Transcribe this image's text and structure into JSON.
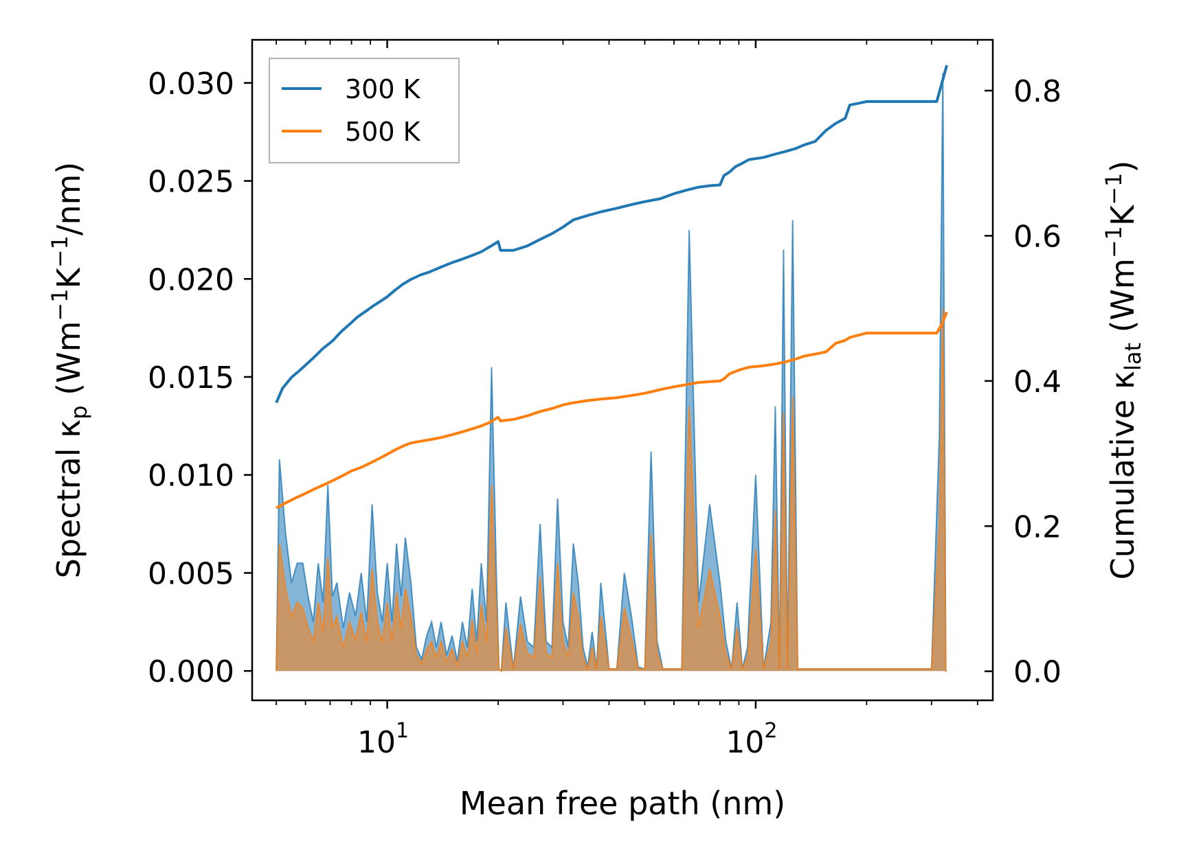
{
  "chart_data": {
    "type": "line",
    "title": "",
    "xlabel": "Mean free path (nm)",
    "ylabel_left": {
      "main": "Spectral κ",
      "sub": "p",
      "unit_open": " (Wm",
      "sup1": "−1",
      "k": "K",
      "sup2": "−1",
      "unit_close": "/nm)"
    },
    "ylabel_right": {
      "main": "Cumulative κ",
      "sub": "lat",
      "unit_open": " (Wm",
      "sup1": "−1",
      "k": "K",
      "sup2": "−1",
      "unit_close": ")"
    },
    "xscale": "log",
    "xlim": [
      4.3,
      440
    ],
    "ylim_left": [
      -0.0015,
      0.0322
    ],
    "ylim_right": [
      -0.04,
      0.87
    ],
    "x_ticks": [
      {
        "value": 10,
        "base": "10",
        "exp": "1"
      },
      {
        "value": 100,
        "base": "10",
        "exp": "2"
      }
    ],
    "y_ticks_left": [
      "0.000",
      "0.005",
      "0.010",
      "0.015",
      "0.020",
      "0.025",
      "0.030"
    ],
    "y_ticks_right": [
      "0.0",
      "0.2",
      "0.4",
      "0.6",
      "0.8"
    ],
    "legend": {
      "position": "top-left",
      "entries": [
        "300 K",
        "500 K"
      ]
    },
    "colors": {
      "300 K": "#1f77b4",
      "500 K": "#ff7f0e"
    },
    "series": [
      {
        "name": "300 K",
        "cumulative": {
          "x": [
            5.0,
            5.2,
            5.5,
            5.8,
            6.1,
            6.4,
            6.7,
            7.1,
            7.5,
            7.9,
            8.3,
            8.8,
            9.2,
            9.6,
            10.0,
            10.5,
            11.0,
            11.6,
            12.3,
            13.0,
            14.0,
            15.0,
            16.0,
            17.0,
            18.0,
            19.0,
            20.0,
            20.3,
            22,
            24,
            26,
            28,
            30,
            32,
            35,
            38,
            42,
            46,
            50,
            55,
            60,
            65,
            70,
            75,
            80,
            82,
            85,
            88,
            92,
            96,
            105,
            112,
            120,
            128,
            135,
            145,
            155,
            165,
            175,
            180,
            200,
            250,
            310,
            320,
            330
          ],
          "y": [
            0.37,
            0.39,
            0.405,
            0.415,
            0.425,
            0.435,
            0.445,
            0.455,
            0.468,
            0.478,
            0.488,
            0.497,
            0.504,
            0.51,
            0.516,
            0.525,
            0.533,
            0.54,
            0.546,
            0.55,
            0.557,
            0.563,
            0.568,
            0.573,
            0.578,
            0.585,
            0.592,
            0.58,
            0.58,
            0.586,
            0.595,
            0.603,
            0.612,
            0.622,
            0.628,
            0.633,
            0.638,
            0.643,
            0.647,
            0.651,
            0.658,
            0.663,
            0.667,
            0.669,
            0.67,
            0.683,
            0.688,
            0.695,
            0.7,
            0.705,
            0.708,
            0.712,
            0.716,
            0.72,
            0.725,
            0.73,
            0.745,
            0.755,
            0.762,
            0.78,
            0.785,
            0.785,
            0.785,
            0.81,
            0.835
          ]
        },
        "spectral": {
          "x": [
            5.0,
            5.1,
            5.3,
            5.5,
            5.7,
            5.9,
            6.1,
            6.3,
            6.5,
            6.7,
            6.9,
            7.1,
            7.3,
            7.6,
            7.9,
            8.2,
            8.5,
            8.8,
            9.1,
            9.4,
            9.7,
            10.0,
            10.3,
            10.6,
            10.9,
            11.2,
            11.6,
            12.0,
            12.4,
            12.8,
            13.2,
            13.6,
            14.0,
            14.5,
            15.0,
            15.5,
            16.0,
            16.5,
            17.0,
            17.5,
            18.0,
            18.6,
            19.2,
            19.8,
            20.1,
            20.4,
            21,
            22,
            23,
            24,
            25,
            26,
            27,
            28,
            29,
            30,
            31,
            32,
            33,
            34,
            35,
            36,
            37,
            38,
            40,
            42,
            44,
            46,
            48,
            50,
            52,
            54,
            56,
            58,
            60,
            63,
            66,
            70,
            75,
            80,
            83,
            86,
            89,
            92,
            95,
            100,
            105,
            110,
            113,
            116,
            119,
            122,
            126,
            130,
            134,
            138,
            142,
            146,
            150,
            154,
            158,
            162,
            166,
            170,
            174,
            178,
            182,
            200,
            250,
            300,
            315,
            322,
            328,
            330
          ],
          "y": [
            0.0,
            0.0108,
            0.007,
            0.0045,
            0.0055,
            0.0055,
            0.0038,
            0.0025,
            0.0055,
            0.0035,
            0.0095,
            0.0038,
            0.0045,
            0.0022,
            0.004,
            0.0028,
            0.005,
            0.0025,
            0.0085,
            0.004,
            0.0025,
            0.0055,
            0.0025,
            0.0065,
            0.0038,
            0.0068,
            0.0045,
            0.0012,
            0.0006,
            0.0018,
            0.0025,
            0.0012,
            0.0025,
            0.0008,
            0.0018,
            0.0005,
            0.0025,
            0.0012,
            0.0042,
            0.0015,
            0.0055,
            0.0025,
            0.0155,
            0.0045,
            0.0001,
            0.0,
            0.0035,
            0.0001,
            0.0038,
            0.0015,
            0.0012,
            0.0075,
            0.0015,
            0.0012,
            0.0088,
            0.0025,
            0.0012,
            0.0065,
            0.0045,
            0.0012,
            0.0002,
            0.002,
            0.0001,
            0.0045,
            0.0001,
            0.0001,
            0.005,
            0.0028,
            0.0002,
            0.0001,
            0.0112,
            0.0015,
            0.0001,
            0.0001,
            0.0001,
            0.0001,
            0.0225,
            0.0035,
            0.0085,
            0.0045,
            0.0015,
            0.0001,
            0.0035,
            0.0001,
            0.0012,
            0.01,
            0.0001,
            0.0025,
            0.0135,
            0.0001,
            0.0215,
            0.0001,
            0.023,
            0.0001,
            0.0001,
            0.0001,
            0.0001,
            0.0001,
            0.0001,
            0.0001,
            0.0001,
            0.0001,
            0.0001,
            0.0001,
            0.0001,
            0.0001,
            0.0001,
            0.0001,
            0.0001,
            0.0001,
            0.012,
            0.0305,
            0.0,
            0.0
          ]
        }
      },
      {
        "name": "500 K",
        "cumulative": {
          "x": [
            5.0,
            5.3,
            5.6,
            6.0,
            6.4,
            6.8,
            7.2,
            7.6,
            8.0,
            8.5,
            9.0,
            9.5,
            10.0,
            10.5,
            11.0,
            11.5,
            12.0,
            13.0,
            14.0,
            15.0,
            16.0,
            17.0,
            18.0,
            19.0,
            20.0,
            20.3,
            22,
            24,
            26,
            28,
            30,
            32,
            35,
            38,
            42,
            46,
            50,
            55,
            60,
            65,
            70,
            75,
            80,
            82,
            85,
            90,
            96,
            105,
            112,
            120,
            128,
            135,
            145,
            155,
            165,
            175,
            180,
            200,
            250,
            310,
            320,
            330
          ],
          "y": [
            0.225,
            0.232,
            0.238,
            0.245,
            0.252,
            0.258,
            0.264,
            0.27,
            0.276,
            0.281,
            0.287,
            0.293,
            0.299,
            0.305,
            0.31,
            0.314,
            0.316,
            0.319,
            0.322,
            0.326,
            0.33,
            0.334,
            0.338,
            0.343,
            0.35,
            0.345,
            0.347,
            0.352,
            0.358,
            0.362,
            0.367,
            0.37,
            0.373,
            0.375,
            0.377,
            0.38,
            0.383,
            0.388,
            0.392,
            0.395,
            0.398,
            0.399,
            0.4,
            0.403,
            0.41,
            0.415,
            0.419,
            0.421,
            0.423,
            0.426,
            0.43,
            0.434,
            0.437,
            0.44,
            0.452,
            0.456,
            0.46,
            0.466,
            0.466,
            0.466,
            0.478,
            0.495
          ]
        },
        "spectral": {
          "x": [
            5.0,
            5.1,
            5.3,
            5.5,
            5.7,
            5.9,
            6.1,
            6.3,
            6.5,
            6.7,
            6.9,
            7.1,
            7.3,
            7.6,
            7.9,
            8.2,
            8.5,
            8.8,
            9.1,
            9.4,
            9.7,
            10.0,
            10.3,
            10.6,
            10.9,
            11.2,
            11.6,
            12.0,
            12.4,
            12.8,
            13.2,
            13.6,
            14.0,
            14.5,
            15.0,
            15.5,
            16.0,
            16.5,
            17.0,
            17.5,
            18.0,
            18.6,
            19.2,
            19.8,
            20.1,
            20.4,
            21,
            22,
            23,
            24,
            25,
            26,
            27,
            28,
            29,
            30,
            31,
            32,
            33,
            34,
            35,
            36,
            37,
            38,
            40,
            42,
            44,
            46,
            48,
            50,
            52,
            54,
            56,
            58,
            60,
            63,
            66,
            70,
            75,
            80,
            83,
            86,
            89,
            92,
            95,
            100,
            105,
            110,
            113,
            116,
            119,
            122,
            126,
            130,
            134,
            138,
            142,
            146,
            150,
            154,
            158,
            162,
            166,
            170,
            174,
            178,
            182,
            200,
            250,
            300,
            315,
            322,
            328,
            330
          ],
          "y": [
            0.0,
            0.0065,
            0.0042,
            0.0028,
            0.0035,
            0.0032,
            0.0022,
            0.0015,
            0.0035,
            0.002,
            0.0058,
            0.0022,
            0.0028,
            0.0012,
            0.0025,
            0.0016,
            0.003,
            0.0015,
            0.0052,
            0.0025,
            0.0015,
            0.0035,
            0.0015,
            0.004,
            0.0022,
            0.0042,
            0.0028,
            0.0008,
            0.0004,
            0.0011,
            0.0015,
            0.0007,
            0.0015,
            0.0005,
            0.0011,
            0.0003,
            0.0015,
            0.0007,
            0.0026,
            0.0009,
            0.0034,
            0.0015,
            0.0095,
            0.0028,
            0.0001,
            0.0,
            0.0022,
            0.0001,
            0.0024,
            0.0009,
            0.0007,
            0.0048,
            0.0009,
            0.0007,
            0.0055,
            0.0015,
            0.0007,
            0.004,
            0.0028,
            0.0007,
            0.0001,
            0.0012,
            0.0001,
            0.0028,
            0.0001,
            0.0001,
            0.0032,
            0.0017,
            0.0001,
            0.0001,
            0.007,
            0.0009,
            0.0001,
            0.0001,
            0.0001,
            0.0001,
            0.0135,
            0.0022,
            0.0052,
            0.0028,
            0.0009,
            0.0001,
            0.0022,
            0.0001,
            0.0007,
            0.0062,
            0.0001,
            0.0015,
            0.0082,
            0.0001,
            0.0132,
            0.0001,
            0.014,
            0.0001,
            0.0001,
            0.0001,
            0.0001,
            0.0001,
            0.0001,
            0.0001,
            0.0001,
            0.0001,
            0.0001,
            0.0001,
            0.0001,
            0.0001,
            0.0001,
            0.0001,
            0.0001,
            0.0001,
            0.0075,
            0.0185,
            0.0,
            0.0
          ]
        }
      }
    ]
  }
}
